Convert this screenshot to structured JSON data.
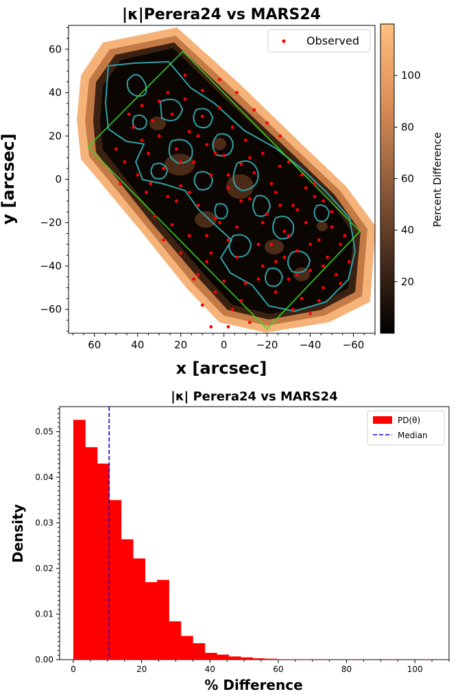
{
  "chart_data": [
    {
      "type": "scatter",
      "title": "|κ|Perera24 vs MARS24",
      "xlabel": "x [arcsec]",
      "ylabel": "y [arcsec]",
      "xlim": [
        72,
        -70
      ],
      "ylim": [
        -71,
        71
      ],
      "xticks": [
        60,
        40,
        20,
        0,
        -20,
        -40,
        -60
      ],
      "yticks": [
        60,
        40,
        20,
        0,
        -20,
        -40,
        -60
      ],
      "xtick_labels": [
        "60",
        "40",
        "20",
        "0",
        "−20",
        "−40",
        "−60"
      ],
      "ytick_labels": [
        "60",
        "40",
        "20",
        "0",
        "−20",
        "−40",
        "−60"
      ],
      "legend": {
        "position": "top-right",
        "entries": [
          "Observed"
        ]
      },
      "colorbar": {
        "label": "Percent Difference",
        "range": [
          0,
          120
        ],
        "ticks": [
          20,
          40,
          60,
          80,
          100
        ],
        "colormap": "copper"
      },
      "field_box": [
        [
          63,
          15
        ],
        [
          19,
          59
        ],
        [
          -63,
          -24
        ],
        [
          -20,
          -69
        ]
      ],
      "field_box_color": "#33dd22",
      "contour_color": "#2fa2a8",
      "point_color": "#ff0000",
      "series": [
        {
          "name": "Observed",
          "points": [
            [
              42,
              24
            ],
            [
              38,
              18
            ],
            [
              35,
              12
            ],
            [
              33,
              27
            ],
            [
              30,
              20
            ],
            [
              28,
              5
            ],
            [
              26,
              -8
            ],
            [
              24,
              30
            ],
            [
              22,
              14
            ],
            [
              20,
              -3
            ],
            [
              18,
              37
            ],
            [
              16,
              22
            ],
            [
              14,
              8
            ],
            [
              12,
              -12
            ],
            [
              10,
              29
            ],
            [
              8,
              16
            ],
            [
              6,
              2
            ],
            [
              4,
              -18
            ],
            [
              2,
              33
            ],
            [
              0,
              11
            ],
            [
              -2,
              -4
            ],
            [
              -4,
              24
            ],
            [
              -6,
              -22
            ],
            [
              -8,
              7
            ],
            [
              -10,
              18
            ],
            [
              -12,
              -9
            ],
            [
              -14,
              3
            ],
            [
              -16,
              -30
            ],
            [
              -18,
              12
            ],
            [
              -20,
              -16
            ],
            [
              -22,
              -2
            ],
            [
              -24,
              -38
            ],
            [
              -26,
              6
            ],
            [
              -28,
              -24
            ],
            [
              -30,
              -46
            ],
            [
              -32,
              -12
            ],
            [
              -34,
              -33
            ],
            [
              -36,
              -55
            ],
            [
              -38,
              -20
            ],
            [
              -40,
              -42
            ],
            [
              -42,
              -8
            ],
            [
              -44,
              -28
            ],
            [
              -46,
              -50
            ],
            [
              -48,
              -36
            ],
            [
              -50,
              -15
            ],
            [
              -52,
              -44
            ],
            [
              -54,
              -30
            ],
            [
              36,
              -6
            ],
            [
              32,
              -17
            ],
            [
              28,
              -28
            ],
            [
              24,
              -21
            ],
            [
              20,
              -34
            ],
            [
              16,
              -26
            ],
            [
              12,
              -44
            ],
            [
              8,
              -38
            ],
            [
              4,
              -52
            ],
            [
              0,
              -47
            ],
            [
              -4,
              -60
            ],
            [
              -8,
              -56
            ],
            [
              -12,
              -66
            ],
            [
              -2,
              -28
            ],
            [
              6,
              -34
            ],
            [
              14,
              -46
            ],
            [
              22,
              -10
            ],
            [
              -6,
              40
            ],
            [
              2,
              46
            ],
            [
              10,
              41
            ],
            [
              18,
              48
            ],
            [
              26,
              40
            ],
            [
              -14,
              32
            ],
            [
              -20,
              26
            ],
            [
              -26,
              20
            ],
            [
              -30,
              8
            ],
            [
              -36,
              2
            ],
            [
              -42,
              -2
            ],
            [
              -46,
              -10
            ],
            [
              -50,
              -22
            ],
            [
              -56,
              -26
            ],
            [
              -58,
              -38
            ],
            [
              46,
              8
            ],
            [
              50,
              14
            ],
            [
              48,
              -2
            ],
            [
              40,
              2
            ],
            [
              34,
              -2
            ],
            [
              30,
              36
            ],
            [
              38,
              34
            ],
            [
              44,
              30
            ],
            [
              -16,
              -46
            ],
            [
              -24,
              -52
            ],
            [
              -32,
              -60
            ],
            [
              -40,
              -62
            ],
            [
              -44,
              -56
            ],
            [
              -34,
              -44
            ],
            [
              -28,
              -36
            ],
            [
              -18,
              -40
            ],
            [
              -10,
              -48
            ],
            [
              -6,
              -36
            ],
            [
              2,
              -20
            ],
            [
              8,
              -26
            ],
            [
              16,
              -6
            ],
            [
              20,
              8
            ],
            [
              12,
              20
            ],
            [
              4,
              12
            ],
            [
              -2,
              2
            ],
            [
              -8,
              -10
            ],
            [
              -12,
              10
            ],
            [
              -18,
              -20
            ],
            [
              -22,
              -30
            ],
            [
              -26,
              -12
            ],
            [
              -30,
              -26
            ],
            [
              -34,
              -14
            ],
            [
              -38,
              -4
            ],
            [
              -24,
              -6
            ],
            [
              10,
              -58
            ],
            [
              -2,
              -68
            ],
            [
              6,
              -68
            ],
            [
              -46,
              -40
            ],
            [
              -54,
              -48
            ],
            [
              -40,
              -30
            ]
          ]
        }
      ]
    },
    {
      "type": "bar",
      "title": "|κ| Perera24 vs MARS24",
      "xlabel": "% Difference",
      "ylabel": "Density",
      "xlim": [
        -4,
        110
      ],
      "ylim": [
        0,
        0.0555
      ],
      "xticks": [
        0,
        20,
        40,
        60,
        80,
        100
      ],
      "yticks": [
        0.0,
        0.01,
        0.02,
        0.03,
        0.04,
        0.05
      ],
      "ytick_labels": [
        "0.00",
        "0.01",
        "0.02",
        "0.03",
        "0.04",
        "0.05"
      ],
      "bin_width": 3.5,
      "bin_start": 0,
      "values": [
        0.0526,
        0.0466,
        0.043,
        0.035,
        0.0264,
        0.0222,
        0.017,
        0.0175,
        0.0084,
        0.0052,
        0.0036,
        0.0015,
        0.0011,
        0.0007,
        0.0005,
        0.0003,
        0.0002,
        0.0001,
        0.0001,
        0.0001,
        0.0001,
        0.0,
        0.0,
        0.0001,
        0.0,
        0.0,
        0.0001,
        0.0,
        0.0,
        0.0001
      ],
      "median": 10.5,
      "bar_color": "#ff0000",
      "median_color": "#0000dd",
      "legend": {
        "position": "top-right",
        "entries": [
          "PD(θ)",
          "Median"
        ]
      }
    }
  ]
}
